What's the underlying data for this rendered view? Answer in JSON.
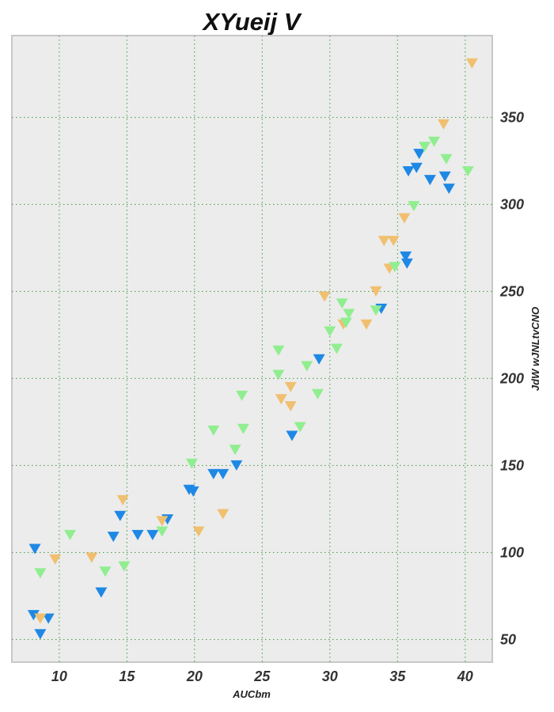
{
  "chart_data": {
    "type": "scatter",
    "title": "XYueij V",
    "xlabel": "AUCbm",
    "ylabel": "JdW  wJNLtvCNO",
    "xlim": [
      6.5,
      42.0
    ],
    "ylim": [
      37,
      397
    ],
    "x_ticks": [
      10,
      15,
      20,
      25,
      30,
      35,
      40
    ],
    "y_ticks": [
      50,
      100,
      150,
      200,
      250,
      300,
      350
    ],
    "y_axis_side": "right",
    "grid": true,
    "marker": "triangle-down",
    "background": "#ececec",
    "series": [
      {
        "color": "#1e88e5",
        "points": [
          [
            8.2,
            102
          ],
          [
            8.1,
            64
          ],
          [
            8.6,
            53
          ],
          [
            9.2,
            62
          ],
          [
            13.1,
            77
          ],
          [
            14.0,
            109
          ],
          [
            14.5,
            121
          ],
          [
            15.8,
            110
          ],
          [
            16.9,
            110
          ],
          [
            18.0,
            119
          ],
          [
            19.6,
            136
          ],
          [
            19.9,
            135
          ],
          [
            21.4,
            145
          ],
          [
            22.1,
            145
          ],
          [
            23.1,
            150
          ],
          [
            27.2,
            167
          ],
          [
            29.2,
            211
          ],
          [
            33.8,
            240
          ],
          [
            35.6,
            270
          ],
          [
            35.7,
            266
          ],
          [
            35.8,
            319
          ],
          [
            36.4,
            321
          ],
          [
            36.6,
            329
          ],
          [
            37.4,
            314
          ],
          [
            38.5,
            316
          ],
          [
            38.8,
            309
          ]
        ]
      },
      {
        "color": "#f0c070",
        "points": [
          [
            8.6,
            62
          ],
          [
            9.7,
            96
          ],
          [
            12.4,
            97
          ],
          [
            14.7,
            130
          ],
          [
            17.6,
            118
          ],
          [
            20.3,
            112
          ],
          [
            22.1,
            122
          ],
          [
            26.4,
            188
          ],
          [
            27.1,
            195
          ],
          [
            27.1,
            184
          ],
          [
            29.6,
            247
          ],
          [
            31.0,
            231
          ],
          [
            32.7,
            231
          ],
          [
            33.4,
            250
          ],
          [
            34.0,
            279
          ],
          [
            34.4,
            263
          ],
          [
            34.7,
            279
          ],
          [
            35.5,
            292
          ],
          [
            38.4,
            346
          ],
          [
            40.5,
            381
          ]
        ]
      },
      {
        "color": "#90ee90",
        "points": [
          [
            8.6,
            88
          ],
          [
            10.8,
            110
          ],
          [
            13.4,
            89
          ],
          [
            14.8,
            92
          ],
          [
            17.6,
            112
          ],
          [
            19.8,
            151
          ],
          [
            21.4,
            170
          ],
          [
            23.0,
            159
          ],
          [
            23.5,
            190
          ],
          [
            23.6,
            171
          ],
          [
            26.2,
            216
          ],
          [
            26.2,
            202
          ],
          [
            27.8,
            172
          ],
          [
            28.3,
            207
          ],
          [
            29.1,
            191
          ],
          [
            30.0,
            227
          ],
          [
            30.5,
            217
          ],
          [
            30.9,
            243
          ],
          [
            31.2,
            232
          ],
          [
            31.4,
            237
          ],
          [
            33.4,
            239
          ],
          [
            34.8,
            264
          ],
          [
            36.2,
            299
          ],
          [
            37.0,
            333
          ],
          [
            37.7,
            336
          ],
          [
            38.6,
            326
          ],
          [
            40.2,
            319
          ]
        ]
      }
    ]
  }
}
